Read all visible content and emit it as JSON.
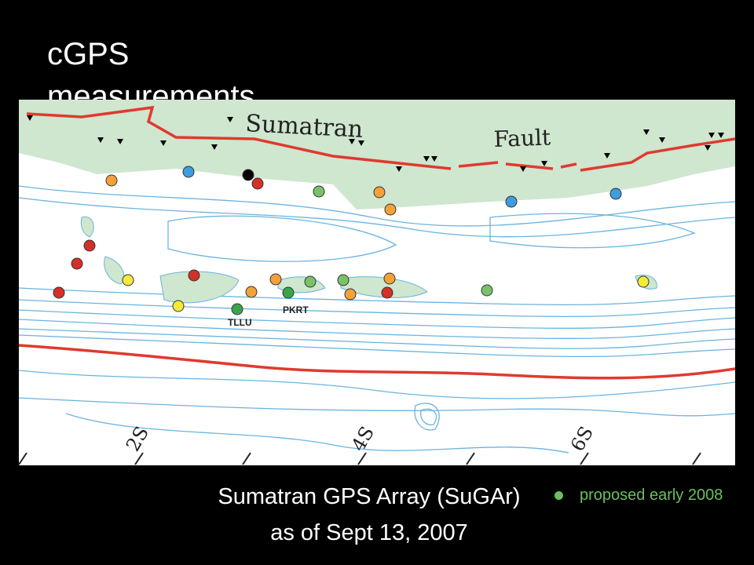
{
  "title": "cGPS measurements",
  "map": {
    "labels": {
      "sumatran": "Sumatran",
      "fault": "Fault",
      "tllu": "TLLU",
      "pkrt": "PKRT",
      "lat_2s": "2S",
      "lat_4s": "4S",
      "lat_6s": "6S"
    }
  },
  "caption": "Sumatran GPS Array (SuGAr) as of Sept 13, 2007",
  "legend": {
    "label": "proposed early 2008"
  }
}
